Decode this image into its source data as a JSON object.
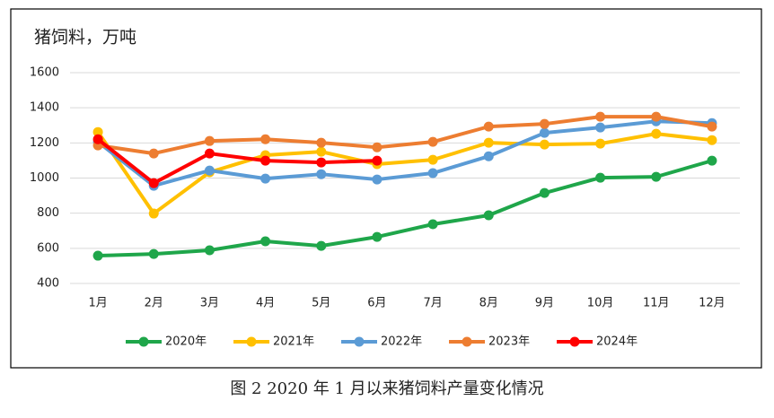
{
  "chart_data": {
    "type": "line",
    "title": "猪饲料，万吨",
    "caption": "图 2 2020 年 1 月以来猪饲料产量变化情况",
    "categories": [
      "1月",
      "2月",
      "3月",
      "4月",
      "5月",
      "6月",
      "7月",
      "8月",
      "9月",
      "10月",
      "11月",
      "12月"
    ],
    "ylim": [
      400,
      1600
    ],
    "yticks": [
      400,
      600,
      800,
      1000,
      1200,
      1400,
      1600
    ],
    "grid": true,
    "legend": "bottom",
    "series": [
      {
        "name": "2020年",
        "color": "#1fa64a",
        "values": [
          558,
          568,
          589,
          640,
          614,
          665,
          737,
          788,
          915,
          1002,
          1007,
          1099
        ]
      },
      {
        "name": "2021年",
        "color": "#ffc000",
        "values": [
          1262,
          798,
          1033,
          1130,
          1150,
          1079,
          1104,
          1201,
          1191,
          1196,
          1252,
          1216
        ]
      },
      {
        "name": "2022年",
        "color": "#5b9bd5",
        "values": [
          1206,
          956,
          1043,
          997,
          1022,
          992,
          1028,
          1124,
          1257,
          1288,
          1323,
          1313
        ]
      },
      {
        "name": "2023年",
        "color": "#ed7d31",
        "values": [
          1186,
          1140,
          1211,
          1221,
          1201,
          1175,
          1206,
          1293,
          1308,
          1349,
          1349,
          1293
        ]
      },
      {
        "name": "2024年",
        "color": "#ff0000",
        "values": [
          1221,
          971,
          1140,
          1099,
          1089,
          1099,
          null,
          null,
          null,
          null,
          null,
          null
        ]
      }
    ]
  }
}
